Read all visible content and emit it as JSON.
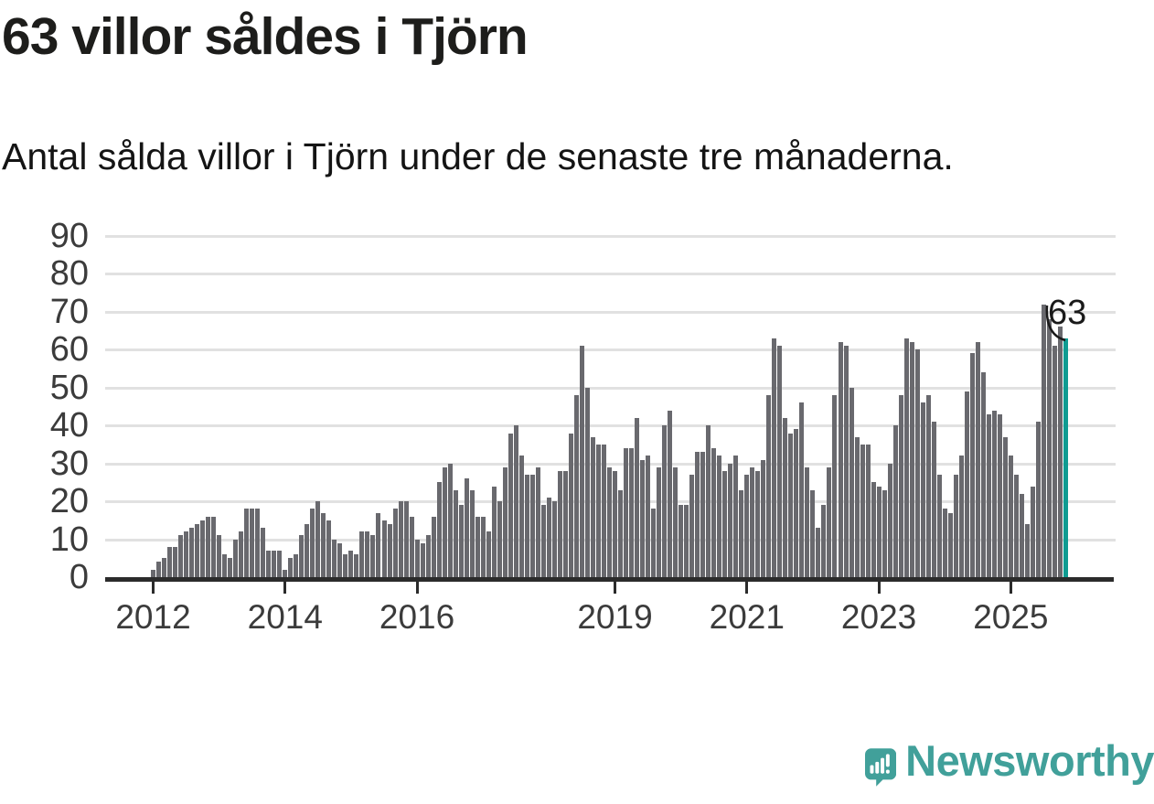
{
  "header": {
    "title": "63 villor såldes i Tjörn",
    "subtitle": "Antal sålda villor i Tjörn under de senaste tre månaderna."
  },
  "branding": {
    "wordmark": "Newsworthy",
    "logo_icon": "speech-bubble-bar-chart-icon"
  },
  "colors": {
    "background": "#ffffff",
    "bar": "#69696e",
    "highlight": "#0f9b91",
    "grid": "#e1e1e1",
    "axis": "#2b2b2b",
    "axis_text": "#3b3b3b",
    "title_text": "#1d1d1b",
    "brand": "#41a09a"
  },
  "chart_data": {
    "type": "bar",
    "title": "63 villor såldes i Tjörn",
    "subtitle": "Antal sålda villor i Tjörn under de senaste tre månaderna.",
    "unit": "sålda villor per 3-månadersperiod",
    "x_start_month": "2012-01",
    "x_end_month": "2025-10",
    "values": [
      2,
      4,
      5,
      8,
      8,
      11,
      12,
      13,
      14,
      15,
      16,
      16,
      11,
      6,
      5,
      10,
      12,
      18,
      18,
      18,
      13,
      7,
      7,
      7,
      2,
      5,
      6,
      11,
      14,
      18,
      20,
      17,
      15,
      10,
      9,
      6,
      7,
      6,
      12,
      12,
      11,
      17,
      15,
      14,
      18,
      20,
      20,
      16,
      10,
      9,
      11,
      16,
      25,
      29,
      30,
      23,
      19,
      26,
      23,
      16,
      16,
      12,
      24,
      20,
      29,
      38,
      40,
      32,
      27,
      27,
      29,
      19,
      21,
      20,
      28,
      28,
      38,
      48,
      61,
      50,
      37,
      35,
      35,
      29,
      28,
      23,
      34,
      34,
      42,
      31,
      32,
      18,
      29,
      40,
      44,
      29,
      19,
      19,
      27,
      33,
      33,
      40,
      34,
      32,
      28,
      30,
      32,
      23,
      27,
      29,
      28,
      31,
      48,
      63,
      61,
      42,
      38,
      39,
      46,
      29,
      23,
      13,
      19,
      29,
      48,
      62,
      61,
      50,
      37,
      35,
      35,
      25,
      24,
      23,
      30,
      40,
      48,
      63,
      62,
      60,
      46,
      48,
      41,
      27,
      18,
      17,
      27,
      32,
      49,
      59,
      62,
      54,
      43,
      44,
      43,
      37,
      32,
      27,
      22,
      14,
      24,
      41,
      72,
      68,
      61,
      66,
      63
    ],
    "highlight_index": 166,
    "annotation": {
      "label": "63",
      "value": 63
    },
    "ylim": [
      0,
      90
    ],
    "yticks": [
      0,
      10,
      20,
      30,
      40,
      50,
      60,
      70,
      80,
      90
    ],
    "xticks": [
      {
        "label": "2012",
        "index": 0
      },
      {
        "label": "2014",
        "index": 24
      },
      {
        "label": "2016",
        "index": 48
      },
      {
        "label": "2019",
        "index": 84
      },
      {
        "label": "2021",
        "index": 108
      },
      {
        "label": "2023",
        "index": 132
      },
      {
        "label": "2025",
        "index": 156
      }
    ],
    "grid": true,
    "legend": "none"
  }
}
